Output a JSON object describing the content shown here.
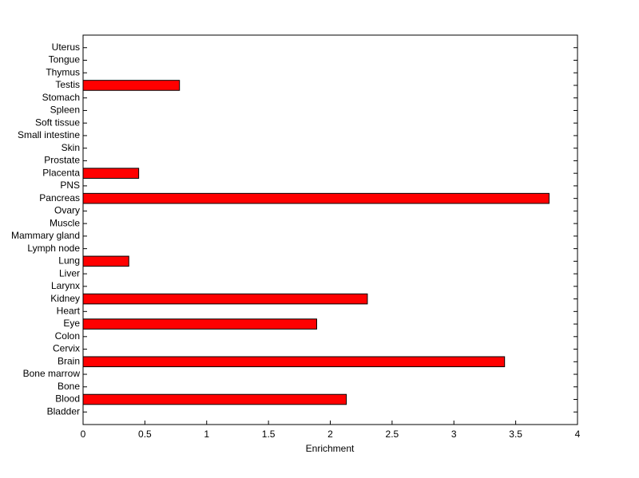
{
  "chart_data": {
    "type": "barh",
    "xlabel": "Enrichment",
    "categories": [
      "Bladder",
      "Blood",
      "Bone",
      "Bone marrow",
      "Brain",
      "Cervix",
      "Colon",
      "Eye",
      "Heart",
      "Kidney",
      "Larynx",
      "Liver",
      "Lung",
      "Lymph node",
      "Mammary gland",
      "Muscle",
      "Ovary",
      "Pancreas",
      "PNS",
      "Placenta",
      "Prostate",
      "Skin",
      "Small intestine",
      "Soft tissue",
      "Spleen",
      "Stomach",
      "Testis",
      "Thymus",
      "Tongue",
      "Uterus"
    ],
    "values": [
      0,
      2.13,
      0,
      0,
      3.41,
      0,
      0,
      1.89,
      0,
      2.3,
      0,
      0,
      0.37,
      0,
      0,
      0,
      0,
      3.77,
      0,
      0.45,
      0,
      0,
      0,
      0,
      0,
      0,
      0.78,
      0,
      0,
      0
    ],
    "color": "#ff0000",
    "xlim": [
      0,
      4
    ],
    "xticks": [
      0,
      0.5,
      1,
      1.5,
      2,
      2.5,
      3,
      3.5,
      4
    ]
  }
}
